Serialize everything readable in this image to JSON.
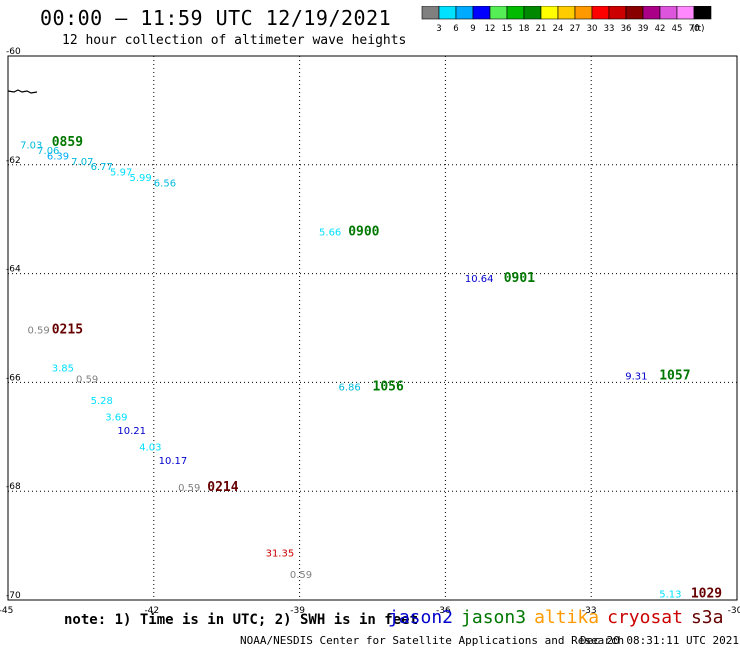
{
  "header": {
    "title": "00:00 – 11:59 UTC 12/19/2021",
    "subtitle": "12 hour collection of altimeter wave heights"
  },
  "colorbar": {
    "colors": [
      "#808080",
      "#00e0ff",
      "#00aaff",
      "#0000ff",
      "#55ee55",
      "#00bb00",
      "#008800",
      "#ffff00",
      "#ffcc00",
      "#ff9900",
      "#ff0000",
      "#cc0000",
      "#880000",
      "#aa0088",
      "#dd55dd",
      "#ff88ff",
      "#000000"
    ],
    "labels": [
      "3",
      "6",
      "9",
      "12",
      "15",
      "18",
      "21",
      "24",
      "27",
      "30",
      "33",
      "36",
      "39",
      "42",
      "45",
      "70"
    ],
    "unit": "(ft)"
  },
  "chart_data": {
    "type": "scatter",
    "xlim": [
      -45,
      -30
    ],
    "ylim": [
      -70,
      -60
    ],
    "xticks": [
      "-45",
      "-42",
      "-39",
      "-36",
      "-33",
      "-30"
    ],
    "yticks": [
      "-60",
      "-62",
      "-64",
      "-66",
      "-68",
      "-70"
    ],
    "grid": true,
    "satellite_colors": {
      "jason2": "#0000cc",
      "jason3": "#007700",
      "altika": "#ff9900",
      "cryosat": "#cc0000",
      "s3a": "#660000"
    },
    "time_labels": [
      {
        "text": "0859",
        "x": -44.1,
        "y": -61.65,
        "color": "#007700"
      },
      {
        "text": "0900",
        "x": -38.0,
        "y": -63.3,
        "color": "#007700"
      },
      {
        "text": "0901",
        "x": -34.8,
        "y": -64.15,
        "color": "#007700"
      },
      {
        "text": "0215",
        "x": -44.1,
        "y": -65.1,
        "color": "#660000"
      },
      {
        "text": "1056",
        "x": -37.5,
        "y": -66.15,
        "color": "#007700"
      },
      {
        "text": "1057",
        "x": -31.6,
        "y": -65.95,
        "color": "#007700"
      },
      {
        "text": "0214",
        "x": -40.9,
        "y": -68.0,
        "color": "#660000"
      },
      {
        "text": "1029",
        "x": -30.95,
        "y": -69.95,
        "color": "#660000"
      }
    ],
    "points": [
      {
        "text": "7.03",
        "x": -44.75,
        "y": -61.7,
        "color": "#00bbdd"
      },
      {
        "text": "7.06",
        "x": -44.4,
        "y": -61.8,
        "color": "#00bbdd"
      },
      {
        "text": "6.39",
        "x": -44.2,
        "y": -61.9,
        "color": "#00aaff"
      },
      {
        "text": "7.07",
        "x": -43.7,
        "y": -62.0,
        "color": "#00bbdd"
      },
      {
        "text": "6.77",
        "x": -43.3,
        "y": -62.1,
        "color": "#00bbdd"
      },
      {
        "text": "5.97",
        "x": -42.9,
        "y": -62.2,
        "color": "#00e0ff"
      },
      {
        "text": "5.99",
        "x": -42.5,
        "y": -62.3,
        "color": "#00e0ff"
      },
      {
        "text": "6.56",
        "x": -42.0,
        "y": -62.4,
        "color": "#00bbdd"
      },
      {
        "text": "5.66",
        "x": -38.6,
        "y": -63.3,
        "color": "#00e0ff"
      },
      {
        "text": "10.64",
        "x": -35.6,
        "y": -64.15,
        "color": "#0000cc"
      },
      {
        "text": "0.59",
        "x": -44.6,
        "y": -65.1,
        "color": "#808080"
      },
      {
        "text": "3.85",
        "x": -44.1,
        "y": -65.8,
        "color": "#00e0ff"
      },
      {
        "text": "0.59",
        "x": -43.6,
        "y": -66.0,
        "color": "#808080"
      },
      {
        "text": "6.86",
        "x": -38.2,
        "y": -66.15,
        "color": "#00bbdd"
      },
      {
        "text": "9.31",
        "x": -32.3,
        "y": -65.95,
        "color": "#0000cc"
      },
      {
        "text": "5.28",
        "x": -43.3,
        "y": -66.4,
        "color": "#00e0ff"
      },
      {
        "text": "3.69",
        "x": -43.0,
        "y": -66.7,
        "color": "#00e0ff"
      },
      {
        "text": "10.21",
        "x": -42.75,
        "y": -66.95,
        "color": "#0000cc"
      },
      {
        "text": "4.03",
        "x": -42.3,
        "y": -67.25,
        "color": "#00e0ff"
      },
      {
        "text": "10.17",
        "x": -41.9,
        "y": -67.5,
        "color": "#0000cc"
      },
      {
        "text": "0.59",
        "x": -41.5,
        "y": -68.0,
        "color": "#808080"
      },
      {
        "text": "31.35",
        "x": -39.7,
        "y": -69.2,
        "color": "#cc0000"
      },
      {
        "text": "0.59",
        "x": -39.2,
        "y": -69.6,
        "color": "#808080"
      },
      {
        "text": "5.13",
        "x": -31.6,
        "y": -69.95,
        "color": "#00e0ff"
      }
    ]
  },
  "note": "note: 1) Time is in UTC; 2) SWH is in feet",
  "legend": [
    {
      "name": "jason2",
      "color": "#0000cc"
    },
    {
      "name": "jason3",
      "color": "#007700"
    },
    {
      "name": "altika",
      "color": "#ff9900"
    },
    {
      "name": "cryosat",
      "color": "#cc0000"
    },
    {
      "name": "s3a",
      "color": "#660000"
    }
  ],
  "footer": {
    "credit": "NOAA/NESDIS Center for Satellite Applications and Research",
    "date": "Dec 20 08:31:11 UTC 2021"
  }
}
